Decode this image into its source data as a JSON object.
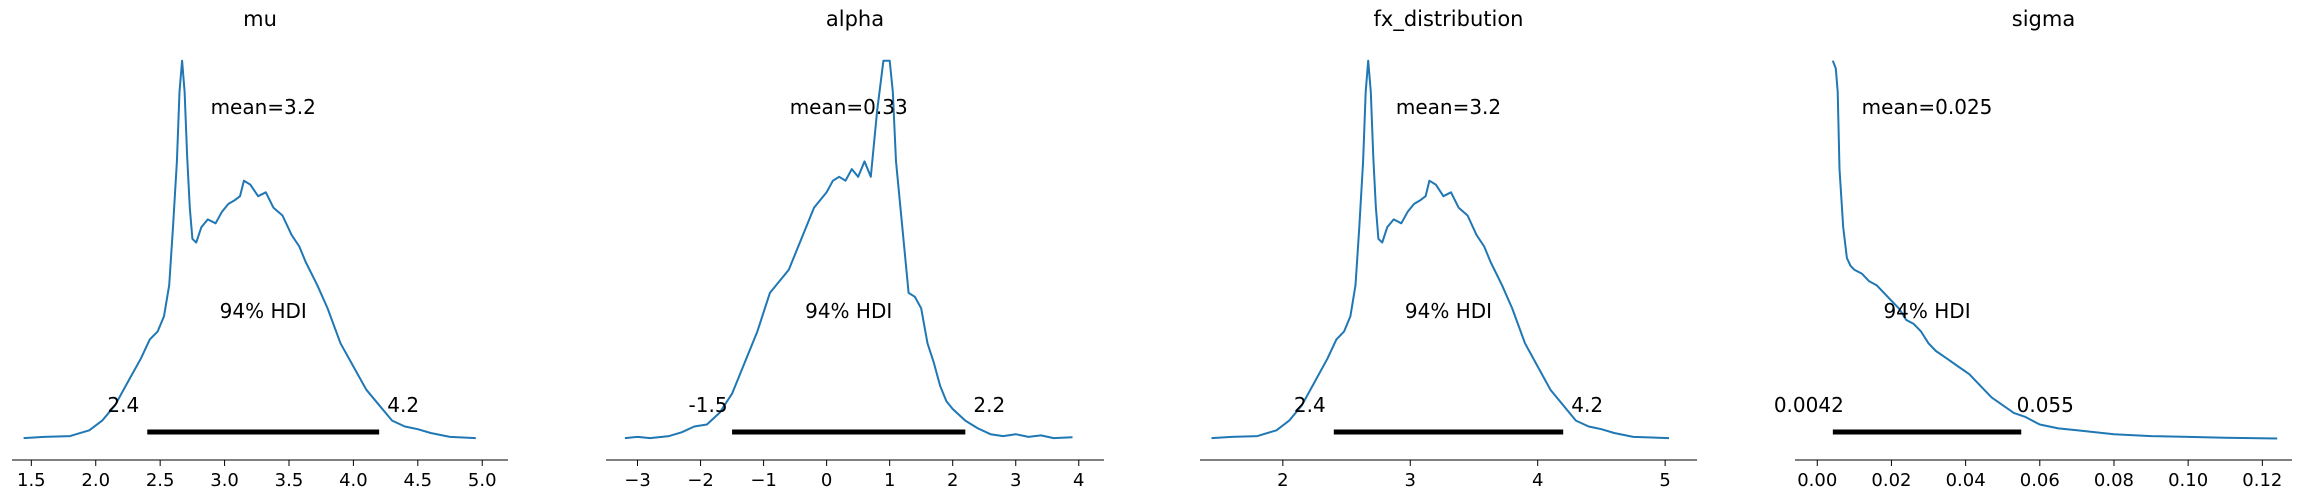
{
  "chart_data": [
    {
      "type": "line",
      "title": "mu",
      "mean_label": "mean=3.2",
      "hdi_label": "94% HDI",
      "hdi": [
        2.4,
        4.2
      ],
      "hdi_labels": [
        "2.4",
        "4.2"
      ],
      "xlim": [
        1.35,
        5.2
      ],
      "ylim": [
        0,
        1.0
      ],
      "xticks": [
        1.5,
        2.0,
        2.5,
        3.0,
        3.5,
        4.0,
        4.5,
        5.0
      ],
      "xtick_labels": [
        "1.5",
        "2.0",
        "2.5",
        "3.0",
        "3.5",
        "4.0",
        "4.5",
        "5.0"
      ],
      "x": [
        1.44,
        1.6,
        1.8,
        1.95,
        2.05,
        2.15,
        2.25,
        2.35,
        2.42,
        2.48,
        2.53,
        2.57,
        2.6,
        2.63,
        2.65,
        2.67,
        2.69,
        2.71,
        2.73,
        2.75,
        2.78,
        2.82,
        2.87,
        2.93,
        2.98,
        3.03,
        3.08,
        3.12,
        3.15,
        3.2,
        3.26,
        3.32,
        3.38,
        3.45,
        3.52,
        3.58,
        3.63,
        3.72,
        3.8,
        3.9,
        4.0,
        4.1,
        4.2,
        4.3,
        4.4,
        4.5,
        4.6,
        4.75,
        4.95
      ],
      "y": [
        0.005,
        0.008,
        0.01,
        0.025,
        0.05,
        0.09,
        0.15,
        0.21,
        0.26,
        0.28,
        0.32,
        0.4,
        0.55,
        0.72,
        0.9,
        0.98,
        0.9,
        0.73,
        0.6,
        0.52,
        0.51,
        0.55,
        0.57,
        0.56,
        0.59,
        0.61,
        0.62,
        0.63,
        0.67,
        0.66,
        0.63,
        0.64,
        0.6,
        0.58,
        0.53,
        0.5,
        0.46,
        0.4,
        0.34,
        0.25,
        0.19,
        0.13,
        0.09,
        0.05,
        0.035,
        0.028,
        0.018,
        0.008,
        0.005
      ]
    },
    {
      "type": "line",
      "title": "alpha",
      "mean_label": "mean=0.33",
      "hdi_label": "94% HDI",
      "hdi": [
        -1.5,
        2.2
      ],
      "hdi_labels": [
        "-1.5",
        "2.2"
      ],
      "xlim": [
        -3.5,
        4.4
      ],
      "ylim": [
        0,
        1.0
      ],
      "xticks": [
        -3,
        -2,
        -1,
        0,
        1,
        2,
        3,
        4
      ],
      "xtick_labels": [
        "−3",
        "−2",
        "−1",
        "0",
        "1",
        "2",
        "3",
        "4"
      ],
      "x": [
        -3.2,
        -3.0,
        -2.8,
        -2.5,
        -2.3,
        -2.1,
        -1.9,
        -1.7,
        -1.5,
        -1.3,
        -1.1,
        -0.9,
        -0.6,
        -0.4,
        -0.2,
        0.0,
        0.1,
        0.2,
        0.3,
        0.4,
        0.5,
        0.6,
        0.7,
        0.8,
        0.9,
        1.0,
        1.05,
        1.1,
        1.2,
        1.3,
        1.4,
        1.5,
        1.6,
        1.7,
        1.8,
        1.9,
        2.0,
        2.2,
        2.4,
        2.6,
        2.8,
        3.0,
        3.2,
        3.4,
        3.6,
        3.9
      ],
      "y": [
        0.005,
        0.008,
        0.005,
        0.01,
        0.02,
        0.035,
        0.04,
        0.07,
        0.12,
        0.2,
        0.28,
        0.38,
        0.44,
        0.52,
        0.6,
        0.64,
        0.67,
        0.68,
        0.67,
        0.7,
        0.68,
        0.72,
        0.68,
        0.85,
        0.98,
        0.98,
        0.9,
        0.72,
        0.55,
        0.38,
        0.37,
        0.34,
        0.25,
        0.2,
        0.14,
        0.1,
        0.08,
        0.05,
        0.03,
        0.015,
        0.01,
        0.015,
        0.008,
        0.012,
        0.005,
        0.007
      ]
    },
    {
      "type": "line",
      "title": "fx_distribution",
      "mean_label": "mean=3.2",
      "hdi_label": "94% HDI",
      "hdi": [
        2.4,
        4.2
      ],
      "hdi_labels": [
        "2.4",
        "4.2"
      ],
      "xlim": [
        1.35,
        5.25
      ],
      "ylim": [
        0,
        1.0
      ],
      "xticks": [
        2,
        3,
        4,
        5
      ],
      "xtick_labels": [
        "2",
        "3",
        "4",
        "5"
      ],
      "x": [
        1.44,
        1.6,
        1.8,
        1.95,
        2.05,
        2.15,
        2.25,
        2.35,
        2.42,
        2.48,
        2.53,
        2.57,
        2.6,
        2.63,
        2.65,
        2.67,
        2.69,
        2.71,
        2.73,
        2.75,
        2.78,
        2.82,
        2.87,
        2.93,
        2.98,
        3.03,
        3.08,
        3.12,
        3.15,
        3.2,
        3.26,
        3.32,
        3.38,
        3.45,
        3.52,
        3.58,
        3.63,
        3.72,
        3.8,
        3.9,
        4.0,
        4.1,
        4.2,
        4.3,
        4.4,
        4.5,
        4.6,
        4.75,
        5.03
      ],
      "y": [
        0.005,
        0.008,
        0.01,
        0.025,
        0.05,
        0.09,
        0.15,
        0.21,
        0.26,
        0.28,
        0.32,
        0.4,
        0.55,
        0.72,
        0.9,
        0.98,
        0.9,
        0.73,
        0.6,
        0.52,
        0.51,
        0.55,
        0.57,
        0.56,
        0.59,
        0.61,
        0.62,
        0.63,
        0.67,
        0.66,
        0.63,
        0.64,
        0.6,
        0.58,
        0.53,
        0.5,
        0.46,
        0.4,
        0.34,
        0.25,
        0.19,
        0.13,
        0.09,
        0.05,
        0.035,
        0.028,
        0.018,
        0.008,
        0.005
      ]
    },
    {
      "type": "line",
      "title": "sigma",
      "mean_label": "mean=0.025",
      "hdi_label": "94% HDI",
      "hdi": [
        0.0042,
        0.055
      ],
      "hdi_labels": [
        "0.0042",
        "0.055"
      ],
      "xlim": [
        -0.006,
        0.128
      ],
      "ylim": [
        0,
        1.0
      ],
      "xticks": [
        0.0,
        0.02,
        0.04,
        0.06,
        0.08,
        0.1,
        0.12
      ],
      "xtick_labels": [
        "0.00",
        "0.02",
        "0.04",
        "0.06",
        "0.08",
        "0.10",
        "0.12"
      ],
      "x": [
        0.0042,
        0.005,
        0.0055,
        0.006,
        0.007,
        0.008,
        0.009,
        0.01,
        0.012,
        0.014,
        0.016,
        0.018,
        0.02,
        0.022,
        0.024,
        0.026,
        0.028,
        0.03,
        0.032,
        0.035,
        0.038,
        0.041,
        0.044,
        0.047,
        0.05,
        0.053,
        0.056,
        0.06,
        0.065,
        0.07,
        0.075,
        0.08,
        0.09,
        0.1,
        0.11,
        0.124
      ],
      "y": [
        0.98,
        0.96,
        0.9,
        0.7,
        0.55,
        0.47,
        0.45,
        0.44,
        0.43,
        0.41,
        0.4,
        0.38,
        0.36,
        0.34,
        0.31,
        0.3,
        0.28,
        0.25,
        0.23,
        0.21,
        0.19,
        0.17,
        0.14,
        0.11,
        0.09,
        0.07,
        0.06,
        0.04,
        0.03,
        0.025,
        0.02,
        0.015,
        0.01,
        0.008,
        0.006,
        0.004
      ]
    }
  ]
}
